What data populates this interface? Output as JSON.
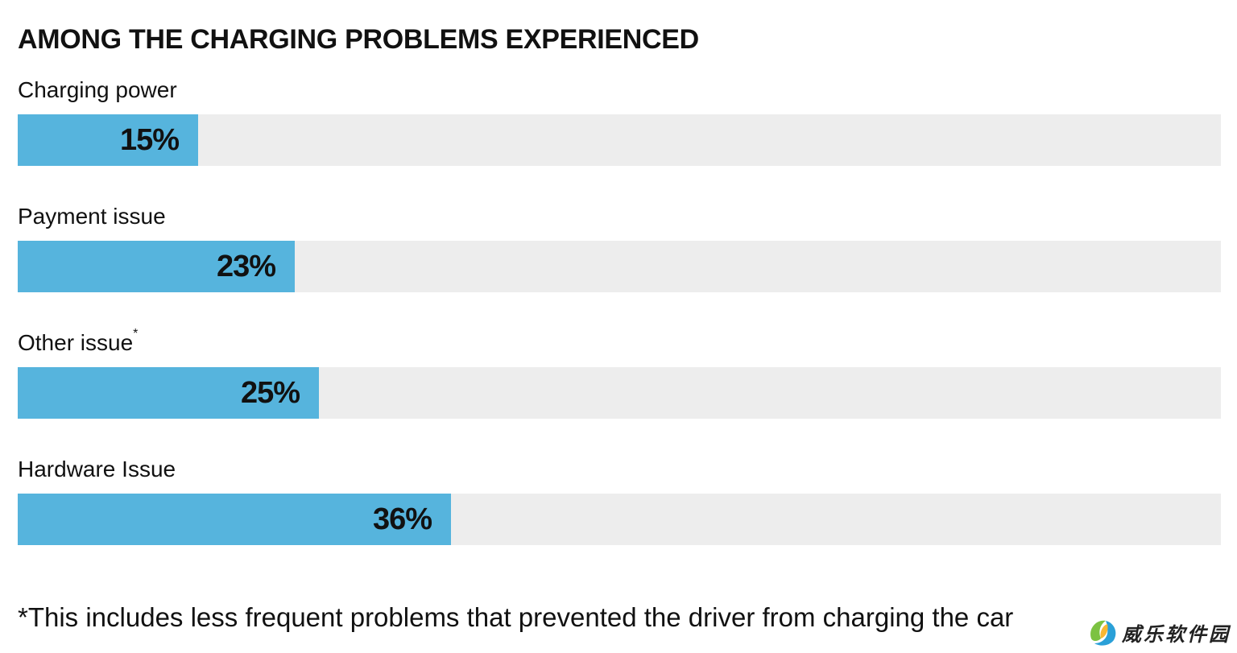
{
  "chart_data": {
    "type": "bar",
    "orientation": "horizontal",
    "title": "AMONG THE CHARGING PROBLEMS EXPERIENCED",
    "categories": [
      "Charging power",
      "Payment issue",
      "Other issue",
      "Hardware Issue"
    ],
    "category_markers": [
      "",
      "",
      "*",
      ""
    ],
    "values": [
      15,
      23,
      25,
      36
    ],
    "value_labels": [
      "15%",
      "23%",
      "25%",
      "36%"
    ],
    "unit": "%",
    "xlim": [
      0,
      100
    ],
    "grid": false,
    "legend": "none",
    "bar_color": "#56b4dd",
    "track_color": "#ededed",
    "footnote": "*This includes less frequent problems that prevented the driver from charging the car"
  },
  "watermark": {
    "text": "威乐软件园",
    "icon": "swirl-logo-icon"
  }
}
